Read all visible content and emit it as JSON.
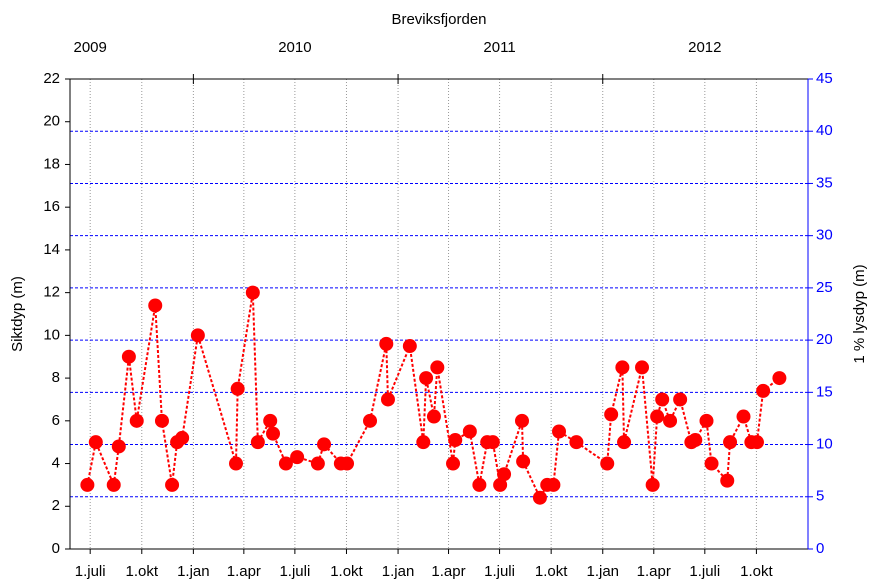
{
  "chart_data": {
    "type": "line",
    "title": "Breviksfjorden",
    "y_label": "Siktdyp (m)",
    "y2_label": "1 % lysdyp (m)",
    "color": "#ff0000",
    "y2color": "#0000ff",
    "xlim": [
      "2009-05-26",
      "2013-01-01"
    ],
    "xticks": [
      {
        "value": "2009-07-01",
        "label": "1.juli"
      },
      {
        "value": "2009-10-01",
        "label": "1.okt"
      },
      {
        "value": "2010-01-01",
        "label": "1.jan"
      },
      {
        "value": "2010-04-01",
        "label": "1.apr"
      },
      {
        "value": "2010-07-01",
        "label": "1.juli"
      },
      {
        "value": "2010-10-01",
        "label": "1.okt"
      },
      {
        "value": "2011-01-01",
        "label": "1.jan"
      },
      {
        "value": "2011-04-01",
        "label": "1.apr"
      },
      {
        "value": "2011-07-01",
        "label": "1.juli"
      },
      {
        "value": "2011-10-01",
        "label": "1.okt"
      },
      {
        "value": "2012-01-01",
        "label": "1.jan"
      },
      {
        "value": "2012-04-01",
        "label": "1.apr"
      },
      {
        "value": "2012-07-01",
        "label": "1.juli"
      },
      {
        "value": "2012-10-01",
        "label": "1.okt"
      }
    ],
    "x2ticks": [
      "2010-01-01",
      "2011-01-01",
      "2012-01-01"
    ],
    "year_labels": [
      {
        "value": "2009-07-01",
        "label": "2009"
      },
      {
        "value": "2010-07-01",
        "label": "2010"
      },
      {
        "value": "2011-07-01",
        "label": "2011"
      },
      {
        "value": "2012-07-01",
        "label": "2012"
      }
    ],
    "ylim": [
      0,
      22
    ],
    "yticks": [
      0,
      2,
      4,
      6,
      8,
      10,
      12,
      14,
      16,
      18,
      20,
      22
    ],
    "y2lim": [
      0,
      45
    ],
    "y2ticks": [
      0,
      5,
      10,
      15,
      20,
      25,
      30,
      35,
      40,
      45
    ],
    "grid": true,
    "x": [
      "2009-06-26",
      "2009-07-11",
      "2009-08-12",
      "2009-08-21",
      "2009-09-08",
      "2009-09-22",
      "2009-10-25",
      "2009-11-06",
      "2009-11-24",
      "2009-12-03",
      "2009-12-12",
      "2010-01-09",
      "2010-03-18",
      "2010-03-21",
      "2010-04-17",
      "2010-04-26",
      "2010-05-18",
      "2010-05-23",
      "2010-06-15",
      "2010-07-05",
      "2010-08-11",
      "2010-08-22",
      "2010-09-21",
      "2010-10-02",
      "2010-11-12",
      "2010-12-11",
      "2010-12-14",
      "2011-01-22",
      "2011-02-15",
      "2011-02-20",
      "2011-03-06",
      "2011-03-12",
      "2011-04-09",
      "2011-04-13",
      "2011-05-09",
      "2011-05-26",
      "2011-06-09",
      "2011-06-19",
      "2011-07-02",
      "2011-07-09",
      "2011-08-10",
      "2011-08-12",
      "2011-09-11",
      "2011-09-24",
      "2011-10-05",
      "2011-10-15",
      "2011-11-15",
      "2012-01-09",
      "2012-01-16",
      "2012-02-05",
      "2012-02-08",
      "2012-03-11",
      "2012-03-30",
      "2012-04-07",
      "2012-04-16",
      "2012-04-30",
      "2012-05-18",
      "2012-06-07",
      "2012-06-14",
      "2012-07-04",
      "2012-07-13",
      "2012-08-10",
      "2012-08-15",
      "2012-09-08",
      "2012-09-22",
      "2012-10-02",
      "2012-10-13",
      "2012-11-11"
    ],
    "values": [
      3.0,
      5.0,
      3.0,
      4.8,
      9.0,
      6.0,
      11.4,
      6.0,
      3.0,
      5.0,
      5.2,
      10.0,
      4.0,
      7.5,
      12.0,
      5.0,
      6.0,
      5.4,
      4.0,
      4.3,
      4.0,
      4.9,
      4.0,
      4.0,
      6.0,
      9.6,
      7.0,
      9.5,
      5.0,
      8.0,
      6.2,
      8.5,
      4.0,
      5.1,
      5.5,
      3.0,
      5.0,
      5.0,
      3.0,
      3.5,
      6.0,
      4.1,
      2.4,
      3.0,
      3.0,
      5.5,
      5.0,
      4.0,
      6.3,
      8.5,
      5.0,
      8.5,
      3.0,
      6.2,
      7.0,
      6.0,
      7.0,
      5.0,
      5.1,
      6.0,
      4.0,
      3.2,
      5.0,
      6.2,
      5.0,
      5.0,
      7.4,
      8.0
    ]
  }
}
